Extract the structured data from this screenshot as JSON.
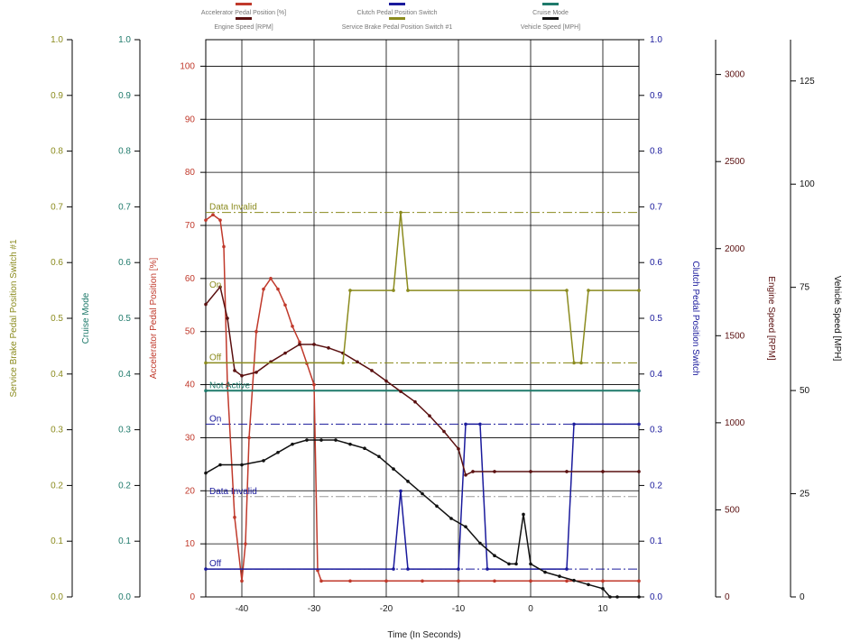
{
  "chart_data": {
    "type": "line",
    "xlabel": "Time (In Seconds)",
    "xticks": [
      -40,
      -30,
      -20,
      -10,
      0,
      10
    ],
    "xlim": [
      -45,
      15
    ],
    "legend": [
      {
        "label": "Accelerator Pedal Position [%]",
        "color": "#c0392b"
      },
      {
        "label": "Clutch Pedal Position Switch",
        "color": "#1a1a9c"
      },
      {
        "label": "Cruise Mode",
        "color": "#1f7a6b"
      },
      {
        "label": "Engine Speed [RPM]",
        "color": "#5a1010"
      },
      {
        "label": "Service Brake Pedal Position Switch #1",
        "color": "#8b8b1e"
      },
      {
        "label": "Vehicle Speed [MPH]",
        "color": "#111111"
      }
    ],
    "axes": [
      {
        "id": "brake",
        "label": "Service Brake Pedal Position Switch #1",
        "color": "#8b8b1e",
        "range": [
          0,
          1
        ],
        "ticks": [
          "0.0",
          "0.1",
          "0.2",
          "0.3",
          "0.4",
          "0.5",
          "0.6",
          "0.7",
          "0.8",
          "0.9",
          "1.0"
        ]
      },
      {
        "id": "cruise",
        "label": "Cruise Mode",
        "color": "#1f7a6b",
        "range": [
          0,
          1
        ],
        "ticks": [
          "0.0",
          "0.1",
          "0.2",
          "0.3",
          "0.4",
          "0.5",
          "0.6",
          "0.7",
          "0.8",
          "0.9",
          "1.0"
        ]
      },
      {
        "id": "accel",
        "label": "Accelerator Pedal Position [%]",
        "color": "#c0392b",
        "range": [
          0,
          105
        ],
        "ticks": [
          "0",
          "10",
          "20",
          "30",
          "40",
          "50",
          "60",
          "70",
          "80",
          "90",
          "100"
        ]
      },
      {
        "id": "clutch",
        "label": "Clutch Pedal Position Switch",
        "color": "#1a1a9c",
        "range": [
          0,
          1
        ],
        "ticks": [
          "0.0",
          "0.1",
          "0.2",
          "0.3",
          "0.4",
          "0.5",
          "0.6",
          "0.7",
          "0.8",
          "0.9",
          "1.0"
        ]
      },
      {
        "id": "rpm",
        "label": "Engine Speed [RPM]",
        "color": "#5a1010",
        "range": [
          0,
          3200
        ],
        "ticks": [
          "0",
          "500",
          "1000",
          "1500",
          "2000",
          "2500",
          "3000"
        ]
      },
      {
        "id": "mph",
        "label": "Vehicle Speed [MPH]",
        "color": "#111111",
        "range": [
          0,
          135
        ],
        "ticks": [
          "0",
          "25",
          "50",
          "75",
          "100",
          "125"
        ]
      }
    ],
    "state_labels": [
      {
        "axis": "brake",
        "text": "Data Invalid",
        "value": 0.69,
        "x": -44.5
      },
      {
        "axis": "brake",
        "text": "On",
        "value": 0.55,
        "x": -44.5
      },
      {
        "axis": "brake",
        "text": "Off",
        "value": 0.42,
        "x": -44.5
      },
      {
        "axis": "cruise",
        "text": "Not Active",
        "value": 0.37,
        "x": -44.5
      },
      {
        "axis": "clutch",
        "text": "On",
        "value": 0.31,
        "x": -44.5
      },
      {
        "axis": "clutch",
        "text": "Data Invalid",
        "value": 0.18,
        "x": -44.5
      },
      {
        "axis": "clutch",
        "text": "Off",
        "value": 0.05,
        "x": -44.5
      }
    ],
    "state_lines": [
      {
        "axis": "brake",
        "value": 0.69,
        "color": "#8b8b1e"
      },
      {
        "axis": "brake",
        "value": 0.42,
        "color": "#8b8b1e"
      },
      {
        "axis": "clutch",
        "value": 0.31,
        "color": "#1a1a9c"
      },
      {
        "axis": "clutch",
        "value": 0.18,
        "color": "#999999"
      },
      {
        "axis": "clutch",
        "value": 0.05,
        "color": "#1a1a9c"
      }
    ],
    "series": [
      {
        "name": "Accelerator Pedal Position [%]",
        "axis": "accel",
        "color": "#c0392b",
        "x": [
          -45,
          -44,
          -43,
          -42.5,
          -42,
          -41,
          -40,
          -39.5,
          -39,
          -38,
          -37,
          -36,
          -35,
          -34,
          -33,
          -32,
          -31,
          -30,
          -29.5,
          -29,
          -25,
          -20,
          -15,
          -10,
          -5,
          0,
          5,
          10,
          15
        ],
        "y": [
          71,
          72,
          71,
          66,
          40,
          15,
          3,
          10,
          30,
          50,
          58,
          60,
          58,
          55,
          51,
          48,
          44,
          40,
          5,
          3,
          3,
          3,
          3,
          3,
          3,
          3,
          3,
          3,
          3
        ]
      },
      {
        "name": "Clutch Pedal Position Switch",
        "axis": "clutch",
        "color": "#1a1a9c",
        "x": [
          -45,
          -19,
          -18,
          -17,
          -10,
          -9,
          -7,
          -6,
          5,
          6,
          15
        ],
        "y": [
          0.05,
          0.05,
          0.19,
          0.05,
          0.05,
          0.31,
          0.31,
          0.05,
          0.05,
          0.31,
          0.31
        ]
      },
      {
        "name": "Cruise Mode",
        "axis": "cruise",
        "color": "#1f7a6b",
        "x": [
          -45,
          15
        ],
        "y": [
          0.37,
          0.37
        ]
      },
      {
        "name": "Engine Speed [RPM]",
        "axis": "rpm",
        "color": "#5a1010",
        "x": [
          -45,
          -43,
          -42,
          -41,
          -40,
          -38,
          -36,
          -34,
          -32,
          -30,
          -28,
          -26,
          -24,
          -22,
          -20,
          -18,
          -16,
          -14,
          -12,
          -10,
          -9,
          -8,
          -5,
          0,
          5,
          10,
          15
        ],
        "y": [
          1680,
          1780,
          1600,
          1300,
          1270,
          1290,
          1350,
          1400,
          1450,
          1450,
          1430,
          1400,
          1350,
          1300,
          1240,
          1180,
          1120,
          1040,
          950,
          850,
          700,
          720,
          720,
          720,
          720,
          720,
          720
        ]
      },
      {
        "name": "Service Brake Pedal Position Switch #1",
        "axis": "brake",
        "color": "#8b8b1e",
        "x": [
          -45,
          -26,
          -25,
          -19,
          -18,
          -17,
          5,
          6,
          7,
          8,
          15
        ],
        "y": [
          0.42,
          0.42,
          0.55,
          0.55,
          0.69,
          0.55,
          0.55,
          0.42,
          0.42,
          0.55,
          0.55
        ]
      },
      {
        "name": "Vehicle Speed [MPH]",
        "axis": "mph",
        "color": "#111111",
        "x": [
          -45,
          -43,
          -40,
          -37,
          -35,
          -33,
          -31,
          -29,
          -27,
          -25,
          -23,
          -21,
          -19,
          -17,
          -15,
          -13,
          -11,
          -9,
          -7,
          -5,
          -3,
          -2,
          -1,
          0,
          2,
          4,
          6,
          8,
          10,
          11,
          12,
          15
        ],
        "y": [
          30,
          32,
          32,
          33,
          35,
          37,
          38,
          38,
          38,
          37,
          36,
          34,
          31,
          28,
          25,
          22,
          19,
          17,
          13,
          10,
          8,
          8,
          20,
          8,
          6,
          5,
          4,
          3,
          2,
          0,
          0,
          0
        ]
      }
    ]
  }
}
